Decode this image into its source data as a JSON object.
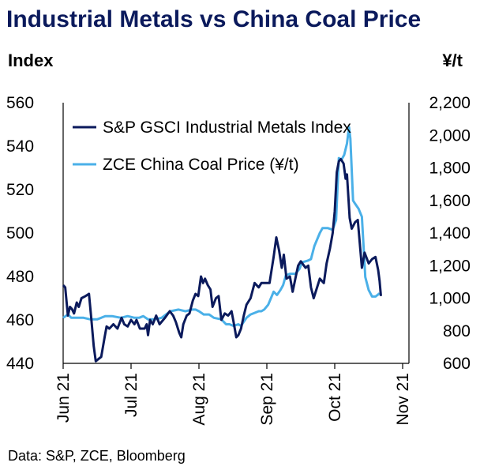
{
  "title": "Industrial Metals vs China Coal Price",
  "source": "Data: S&P, ZCE, Bloomberg",
  "colors": {
    "metals": "#0b1a5c",
    "coal": "#4ab0e8",
    "title": "#0b1a5c"
  },
  "chart_data": {
    "type": "line",
    "title": "Industrial Metals vs China Coal Price",
    "ylabel_left": "Index",
    "ylabel_right": "¥/t",
    "ylim_left": [
      440,
      560
    ],
    "ylim_right": [
      600,
      2200
    ],
    "yticks_left": [
      "560",
      "540",
      "520",
      "500",
      "480",
      "460",
      "440"
    ],
    "yticks_right": [
      "2,200",
      "2,000",
      "1,800",
      "1,600",
      "1,400",
      "1,200",
      "1,000",
      "800",
      "600"
    ],
    "xticks": [
      "Jun 21",
      "Jul 21",
      "Aug 21",
      "Sep 21",
      "Oct 21",
      "Nov 21"
    ],
    "x_range": [
      0,
      5.15
    ],
    "legend_position": "top-left",
    "grid": false,
    "series": [
      {
        "name": "S&P GSCI Industrial Metals Index",
        "axis": "left",
        "points": [
          [
            0.0,
            476
          ],
          [
            0.03,
            475
          ],
          [
            0.07,
            462
          ],
          [
            0.1,
            466
          ],
          [
            0.13,
            465
          ],
          [
            0.16,
            463
          ],
          [
            0.2,
            468
          ],
          [
            0.23,
            466
          ],
          [
            0.27,
            470
          ],
          [
            0.33,
            471
          ],
          [
            0.38,
            472
          ],
          [
            0.41,
            462
          ],
          [
            0.45,
            448
          ],
          [
            0.48,
            441
          ],
          [
            0.52,
            442
          ],
          [
            0.56,
            443
          ],
          [
            0.61,
            452
          ],
          [
            0.64,
            457
          ],
          [
            0.68,
            456
          ],
          [
            0.74,
            458
          ],
          [
            0.8,
            456
          ],
          [
            0.86,
            461
          ],
          [
            0.9,
            458
          ],
          [
            0.95,
            457
          ],
          [
            1.0,
            460
          ],
          [
            1.05,
            458
          ],
          [
            1.08,
            460
          ],
          [
            1.13,
            456
          ],
          [
            1.2,
            456
          ],
          [
            1.23,
            458
          ],
          [
            1.25,
            453
          ],
          [
            1.28,
            460
          ],
          [
            1.32,
            458
          ],
          [
            1.37,
            462
          ],
          [
            1.42,
            458
          ],
          [
            1.5,
            461
          ],
          [
            1.57,
            464
          ],
          [
            1.62,
            462
          ],
          [
            1.66,
            459
          ],
          [
            1.71,
            454
          ],
          [
            1.74,
            452
          ],
          [
            1.77,
            458
          ],
          [
            1.82,
            462
          ],
          [
            1.86,
            463
          ],
          [
            1.91,
            469
          ],
          [
            1.95,
            472
          ],
          [
            1.99,
            471
          ],
          [
            2.03,
            480
          ],
          [
            2.06,
            477
          ],
          [
            2.09,
            479
          ],
          [
            2.13,
            476
          ],
          [
            2.17,
            474
          ],
          [
            2.2,
            466
          ],
          [
            2.25,
            470
          ],
          [
            2.29,
            471
          ],
          [
            2.33,
            460
          ],
          [
            2.38,
            463
          ],
          [
            2.43,
            462
          ],
          [
            2.48,
            464
          ],
          [
            2.51,
            459
          ],
          [
            2.55,
            452
          ],
          [
            2.58,
            453
          ],
          [
            2.62,
            456
          ],
          [
            2.66,
            462
          ],
          [
            2.7,
            467
          ],
          [
            2.76,
            470
          ],
          [
            2.82,
            477
          ],
          [
            2.88,
            475
          ],
          [
            2.92,
            477
          ],
          [
            3.0,
            477
          ],
          [
            3.04,
            477
          ],
          [
            3.1,
            489
          ],
          [
            3.14,
            498
          ],
          [
            3.18,
            492
          ],
          [
            3.22,
            484
          ],
          [
            3.25,
            490
          ],
          [
            3.29,
            479
          ],
          [
            3.34,
            480
          ],
          [
            3.38,
            473
          ],
          [
            3.42,
            479
          ],
          [
            3.46,
            485
          ],
          [
            3.5,
            487
          ],
          [
            3.57,
            484
          ],
          [
            3.61,
            485
          ],
          [
            3.65,
            475
          ],
          [
            3.69,
            470
          ],
          [
            3.73,
            474
          ],
          [
            3.78,
            479
          ],
          [
            3.84,
            477
          ],
          [
            3.88,
            486
          ],
          [
            3.93,
            493
          ],
          [
            3.97,
            500
          ],
          [
            4.0,
            510
          ],
          [
            4.03,
            528
          ],
          [
            4.06,
            533
          ],
          [
            4.09,
            534
          ],
          [
            4.13,
            532
          ],
          [
            4.16,
            525
          ],
          [
            4.18,
            527
          ],
          [
            4.22,
            507
          ],
          [
            4.25,
            502
          ],
          [
            4.3,
            505
          ],
          [
            4.34,
            506
          ],
          [
            4.4,
            484
          ],
          [
            4.44,
            491
          ],
          [
            4.5,
            486
          ],
          [
            4.55,
            488
          ],
          [
            4.6,
            489
          ],
          [
            4.64,
            483
          ],
          [
            4.66,
            478
          ],
          [
            4.68,
            471
          ]
        ]
      },
      {
        "name": "ZCE China Coal Price (¥/t)",
        "axis": "right",
        "points": [
          [
            0.0,
            880
          ],
          [
            0.07,
            900
          ],
          [
            0.12,
            880
          ],
          [
            0.2,
            880
          ],
          [
            0.3,
            880
          ],
          [
            0.4,
            870
          ],
          [
            0.5,
            870
          ],
          [
            0.56,
            880
          ],
          [
            0.62,
            890
          ],
          [
            0.72,
            890
          ],
          [
            0.85,
            880
          ],
          [
            0.95,
            890
          ],
          [
            1.05,
            880
          ],
          [
            1.12,
            880
          ],
          [
            1.18,
            890
          ],
          [
            1.25,
            870
          ],
          [
            1.35,
            870
          ],
          [
            1.45,
            880
          ],
          [
            1.58,
            920
          ],
          [
            1.7,
            930
          ],
          [
            1.8,
            920
          ],
          [
            1.9,
            930
          ],
          [
            1.95,
            930
          ],
          [
            2.0,
            920
          ],
          [
            2.07,
            900
          ],
          [
            2.15,
            900
          ],
          [
            2.22,
            880
          ],
          [
            2.33,
            870
          ],
          [
            2.4,
            840
          ],
          [
            2.45,
            840
          ],
          [
            2.51,
            830
          ],
          [
            2.58,
            840
          ],
          [
            2.62,
            830
          ],
          [
            2.7,
            880
          ],
          [
            2.76,
            900
          ],
          [
            2.82,
            910
          ],
          [
            2.88,
            920
          ],
          [
            2.92,
            920
          ],
          [
            2.96,
            930
          ],
          [
            3.02,
            960
          ],
          [
            3.06,
            1000
          ],
          [
            3.1,
            1040
          ],
          [
            3.15,
            1020
          ],
          [
            3.2,
            1050
          ],
          [
            3.24,
            1080
          ],
          [
            3.28,
            1140
          ],
          [
            3.34,
            1150
          ],
          [
            3.42,
            1150
          ],
          [
            3.48,
            1180
          ],
          [
            3.52,
            1220
          ],
          [
            3.6,
            1230
          ],
          [
            3.65,
            1240
          ],
          [
            3.7,
            1320
          ],
          [
            3.78,
            1400
          ],
          [
            3.82,
            1430
          ],
          [
            3.9,
            1430
          ],
          [
            3.97,
            1420
          ],
          [
            4.02,
            1480
          ],
          [
            4.06,
            1860
          ],
          [
            4.1,
            1850
          ],
          [
            4.14,
            1880
          ],
          [
            4.18,
            1950
          ],
          [
            4.21,
            2050
          ],
          [
            4.23,
            1980
          ],
          [
            4.27,
            1600
          ],
          [
            4.3,
            1580
          ],
          [
            4.35,
            1550
          ],
          [
            4.4,
            1500
          ],
          [
            4.45,
            1130
          ],
          [
            4.5,
            1050
          ],
          [
            4.55,
            1010
          ],
          [
            4.6,
            1010
          ],
          [
            4.63,
            1020
          ],
          [
            4.66,
            1030
          ]
        ]
      }
    ]
  }
}
